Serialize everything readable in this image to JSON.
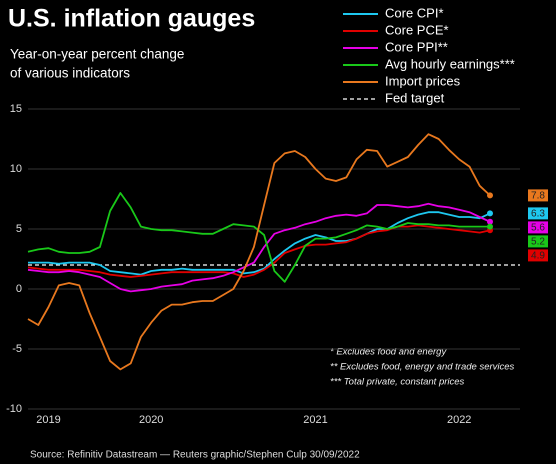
{
  "chart_data": {
    "type": "line",
    "title": "U.S. inflation gauges",
    "subtitle": [
      "Year-on-year percent change",
      "of various indicators"
    ],
    "categories": [
      null,
      null,
      "2019",
      null,
      null,
      null,
      null,
      null,
      null,
      null,
      null,
      null,
      "2020",
      null,
      null,
      null,
      null,
      null,
      null,
      null,
      null,
      null,
      null,
      null,
      null,
      null,
      null,
      null,
      "2021",
      null,
      null,
      null,
      null,
      null,
      null,
      null,
      null,
      null,
      null,
      null,
      null,
      null,
      "2022",
      null,
      null,
      null
    ],
    "series": [
      {
        "name": "Core CPI*",
        "color": "#1ec8f0",
        "values": [
          2.2,
          2.2,
          2.2,
          2.1,
          2.2,
          2.2,
          2.2,
          2.0,
          1.5,
          1.4,
          1.3,
          1.2,
          1.5,
          1.6,
          1.6,
          1.7,
          1.6,
          1.6,
          1.6,
          1.6,
          1.6,
          1.3,
          1.4,
          1.7,
          2.5,
          3.2,
          3.8,
          4.2,
          4.5,
          4.3,
          4.0,
          4.0,
          4.2,
          4.6,
          5.0,
          5.0,
          5.5,
          5.9,
          6.2,
          6.4,
          6.4,
          6.2,
          6.0,
          6.0,
          5.9,
          6.3
        ]
      },
      {
        "name": "Core PCE*",
        "color": "#e00000",
        "values": [
          1.8,
          1.7,
          1.6,
          1.6,
          1.6,
          1.6,
          1.5,
          1.4,
          1.2,
          1.1,
          1.0,
          1.1,
          1.2,
          1.3,
          1.4,
          1.4,
          1.4,
          1.4,
          1.4,
          1.4,
          1.3,
          1.0,
          1.2,
          1.6,
          2.2,
          3.0,
          3.3,
          3.6,
          3.7,
          3.7,
          3.8,
          3.9,
          4.2,
          4.6,
          4.8,
          4.9,
          5.2,
          5.2,
          5.3,
          5.2,
          5.1,
          5.0,
          4.9,
          4.8,
          4.7,
          4.9
        ]
      },
      {
        "name": "Core PPI**",
        "color": "#e600e6",
        "values": [
          1.6,
          1.5,
          1.4,
          1.4,
          1.5,
          1.4,
          1.2,
          1.0,
          0.5,
          0,
          -0.2,
          -0.1,
          0,
          0.2,
          0.3,
          0.4,
          0.7,
          0.8,
          0.9,
          1.1,
          1.4,
          1.8,
          2.2,
          3.5,
          4.6,
          4.9,
          5.1,
          5.4,
          5.6,
          5.9,
          6.1,
          6.2,
          6.1,
          6.3,
          7.0,
          7.0,
          6.9,
          6.8,
          6.9,
          7.1,
          6.9,
          6.8,
          6.6,
          6.4,
          6.0,
          5.6
        ]
      },
      {
        "name": "Avg hourly earnings***",
        "color": "#19c819",
        "values": [
          3.1,
          3.3,
          3.4,
          3.1,
          3.0,
          3.0,
          3.1,
          3.5,
          6.5,
          8.0,
          6.8,
          5.2,
          5.0,
          4.9,
          4.9,
          4.8,
          4.7,
          4.6,
          4.6,
          5.0,
          5.4,
          5.3,
          5.2,
          4.5,
          1.5,
          0.6,
          2.0,
          3.6,
          4.2,
          4.2,
          4.3,
          4.6,
          4.9,
          5.3,
          5.2,
          5.0,
          5.2,
          5.5,
          5.4,
          5.4,
          5.3,
          5.3,
          5.2,
          5.2,
          5.2,
          5.2
        ]
      },
      {
        "name": "Import prices",
        "color": "#e8781e",
        "values": [
          -2.5,
          -3,
          -1.5,
          0.3,
          0.5,
          0.3,
          -2,
          -4,
          -6,
          -6.7,
          -6.2,
          -4,
          -2.8,
          -1.8,
          -1.3,
          -1.3,
          -1.1,
          -1,
          -1,
          -0.5,
          0,
          1.5,
          3.5,
          7,
          10.5,
          11.3,
          11.5,
          11,
          10,
          9.2,
          9,
          9.3,
          10.8,
          11.6,
          11.5,
          10.2,
          10.6,
          11,
          12,
          12.9,
          12.5,
          11.6,
          10.8,
          10.2,
          8.6,
          7.8
        ]
      }
    ],
    "fed_target": {
      "name": "Fed target",
      "value": 2
    },
    "ylim": [
      -10,
      15
    ],
    "yticks": [
      -10,
      -5,
      0,
      5,
      10,
      15
    ],
    "grid": true,
    "notes": [
      "* Excludes food and energy",
      "** Excludes food, energy and trade services",
      "*** Total private, constant prices"
    ],
    "source": "Source: Refinitiv Datastream — Reuters graphic/Stephen Culp 30/09/2022"
  }
}
